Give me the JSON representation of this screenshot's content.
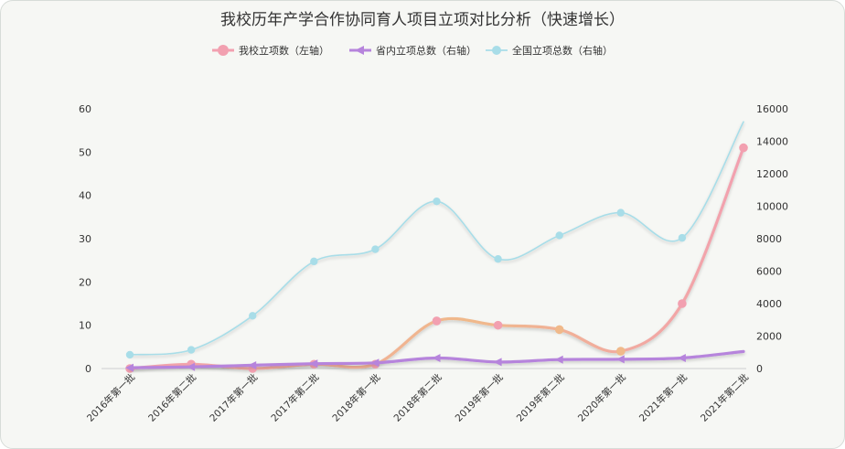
{
  "chart_data": {
    "type": "line",
    "title": "我校历年产学合作协同育人项目立项对比分析（快速增长）",
    "categories": [
      "2016年第一批",
      "2016年第二批",
      "2017年第一批",
      "2017年第二批",
      "2018年第一批",
      "2018年第二批",
      "2019年第一批",
      "2019年第二批",
      "2020年第一批",
      "2021年第一批",
      "2021年第二批"
    ],
    "left_axis": {
      "min": 0,
      "max": 60,
      "ticks": [
        "0",
        "10",
        "20",
        "30",
        "40",
        "50",
        "60"
      ]
    },
    "right_axis": {
      "min": 0,
      "max": 16000,
      "ticks": [
        "0",
        "2000",
        "4000",
        "6000",
        "8000",
        "10000",
        "12000",
        "14000",
        "16000"
      ]
    },
    "legend_position": "top-center",
    "grid": false,
    "series": [
      {
        "name": "我校立项数（左轴）",
        "axis": "left",
        "color": "#f2a0b0",
        "color2": "#f0b98a",
        "marker": "circle",
        "values": [
          0,
          1,
          0,
          1,
          1,
          11,
          10,
          9,
          4,
          15,
          51
        ]
      },
      {
        "name": "省内立项总数（右轴）",
        "axis": "right",
        "color": "#b684dc",
        "marker": "arrow",
        "values": [
          50,
          100,
          200,
          300,
          350,
          650,
          400,
          550,
          570,
          650,
          1050
        ]
      },
      {
        "name": "全国立项总数（右轴）",
        "axis": "right",
        "color": "#a8dde8",
        "marker": "circle",
        "values": [
          850,
          1150,
          3250,
          6600,
          7350,
          10300,
          6750,
          8200,
          9600,
          8050,
          15200
        ]
      }
    ]
  }
}
